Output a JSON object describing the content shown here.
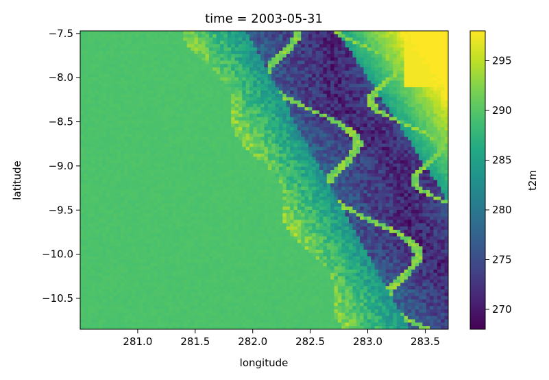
{
  "chart_data": {
    "type": "heatmap",
    "title": "time = 2003-05-31",
    "xlabel": "longitude",
    "ylabel": "latitude",
    "xlim": [
      280.5,
      283.7
    ],
    "ylim": [
      -10.85,
      -7.47
    ],
    "x_ticks": [
      281.0,
      281.5,
      282.0,
      282.5,
      283.0,
      283.5
    ],
    "x_tick_labels": [
      "281.0",
      "281.5",
      "282.0",
      "282.5",
      "283.0",
      "283.5"
    ],
    "y_ticks": [
      -7.5,
      -8.0,
      -8.5,
      -9.0,
      -9.5,
      -10.0,
      -10.5
    ],
    "y_tick_labels": [
      "−7.5",
      "−8.0",
      "−8.5",
      "−9.0",
      "−9.5",
      "−10.0",
      "−10.5"
    ],
    "colorbar": {
      "label": "t2m",
      "colormap": "viridis",
      "vmin": 268,
      "vmax": 298,
      "ticks": [
        270,
        275,
        280,
        285,
        290,
        295
      ],
      "tick_labels": [
        "270",
        "275",
        "280",
        "285",
        "290",
        "295"
      ]
    },
    "grid": false,
    "field_description_values": {
      "coastal_lowland_t2m": 289.5,
      "highland_min_t2m": 269,
      "northeast_max_t2m": 297.5,
      "valley_t2m": 294
    }
  }
}
